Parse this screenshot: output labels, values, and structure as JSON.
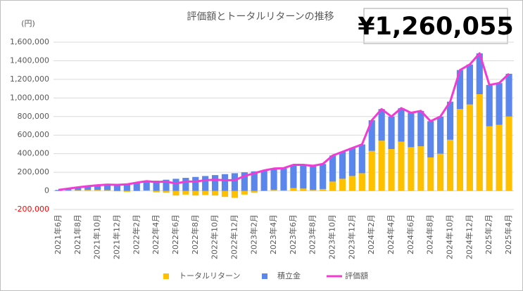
{
  "chart_data": {
    "type": "bar",
    "stacked": true,
    "title": "評価額とトータルリターンの推移",
    "headline": "¥1,260,055",
    "y_label": "(円)",
    "categories": [
      "2021年6月",
      null,
      "2021年8月",
      null,
      "2021年10月",
      null,
      "2021年12月",
      null,
      "2022年2月",
      null,
      "2022年4月",
      null,
      "2022年6月",
      null,
      "2022年8月",
      null,
      "2022年10月",
      null,
      "2022年12月",
      null,
      "2023年2月",
      null,
      "2023年4月",
      null,
      "2023年6月",
      null,
      "2023年8月",
      null,
      "2023年10月",
      null,
      "2023年12月",
      null,
      "2024年2月",
      null,
      "2024年4月",
      null,
      "2024年6月",
      null,
      "2024年8月",
      null,
      "2024年10月",
      null,
      "2024年12月",
      null,
      "2025年2月",
      null,
      "2025年4月"
    ],
    "series": [
      {
        "name": "トータルリターン",
        "type": "bar",
        "color": "#FFC000",
        "values": [
          0,
          5000,
          8000,
          10000,
          10000,
          8000,
          -5000,
          -10000,
          -2000,
          5000,
          -15000,
          -20000,
          -50000,
          -40000,
          -50000,
          -45000,
          -50000,
          -65000,
          -75000,
          -40000,
          -20000,
          0,
          10000,
          5000,
          30000,
          25000,
          10000,
          20000,
          100000,
          130000,
          160000,
          190000,
          430000,
          540000,
          450000,
          530000,
          470000,
          480000,
          360000,
          400000,
          550000,
          880000,
          930000,
          1040000,
          695000,
          710000,
          800055
        ]
      },
      {
        "name": "積立金",
        "type": "bar",
        "color": "#5B87EC",
        "values": [
          10000,
          20000,
          30000,
          40000,
          50000,
          60000,
          70000,
          80000,
          90000,
          100000,
          110000,
          120000,
          130000,
          140000,
          150000,
          160000,
          170000,
          180000,
          190000,
          200000,
          210000,
          220000,
          230000,
          240000,
          250000,
          255000,
          260000,
          270000,
          280000,
          290000,
          300000,
          310000,
          330000,
          340000,
          350000,
          360000,
          370000,
          380000,
          390000,
          400000,
          410000,
          420000,
          430000,
          440000,
          445000,
          450000,
          460000
        ]
      },
      {
        "name": "評価額",
        "type": "line",
        "color": "#F03CD2",
        "values": [
          10000,
          25000,
          38000,
          50000,
          60000,
          68000,
          65000,
          70000,
          88000,
          105000,
          95000,
          100000,
          80000,
          100000,
          100000,
          115000,
          120000,
          115000,
          115000,
          160000,
          190000,
          220000,
          240000,
          245000,
          280000,
          280000,
          270000,
          290000,
          380000,
          420000,
          460000,
          500000,
          760000,
          880000,
          800000,
          890000,
          840000,
          860000,
          750000,
          800000,
          960000,
          1300000,
          1360000,
          1480000,
          1140000,
          1160000,
          1260055
        ]
      }
    ],
    "ylim": [
      -200000,
      1600000
    ],
    "yticks": [
      {
        "value": -200000,
        "label": "-200,000"
      },
      0,
      {
        "value": 200000,
        "label": "200,000"
      },
      {
        "value": 400000,
        "label": "400,000"
      },
      {
        "value": 600000,
        "label": "600,000"
      },
      {
        "value": 800000,
        "label": "800,000"
      },
      {
        "value": 1000000,
        "label": "1,000,000"
      },
      {
        "value": 1200000,
        "label": "1,200,000"
      },
      {
        "value": 1400000,
        "label": "1,400,000"
      },
      {
        "value": 1600000,
        "label": "1,600,000"
      }
    ],
    "grid": true,
    "legend": "bottom"
  }
}
